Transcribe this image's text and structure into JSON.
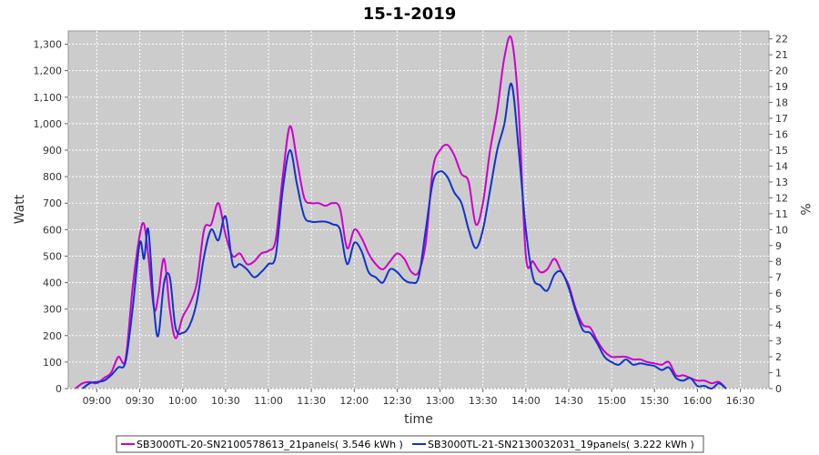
{
  "chart_data": {
    "type": "line",
    "title": "15-1-2019",
    "xlabel": "time",
    "ylabel": "Watt",
    "y2label": "%",
    "ylim": [
      0,
      1350
    ],
    "y2lim": [
      0,
      22.5
    ],
    "xlim": [
      "08:40",
      "16:50"
    ],
    "x_ticks": [
      "09:00",
      "09:30",
      "10:00",
      "10:30",
      "11:00",
      "11:30",
      "12:00",
      "12:30",
      "13:00",
      "13:30",
      "14:00",
      "14:30",
      "15:00",
      "15:30",
      "16:00",
      "16:30"
    ],
    "y_ticks": [
      "0",
      "100",
      "200",
      "300",
      "400",
      "500",
      "600",
      "700",
      "800",
      "900",
      "1,000",
      "1,100",
      "1,200",
      "1,300"
    ],
    "y2_ticks": [
      "0",
      "1",
      "2",
      "3",
      "4",
      "5",
      "6",
      "7",
      "8",
      "9",
      "10",
      "11",
      "12",
      "13",
      "14",
      "15",
      "16",
      "17",
      "18",
      "19",
      "20",
      "21",
      "22"
    ],
    "grid": true,
    "legend_position": "bottom",
    "series": [
      {
        "name": "SB3000TL-20-SN2100578613_21panels( 3.546 kWh )",
        "color": "#cc00cc",
        "points": [
          [
            "08:45",
            0
          ],
          [
            "08:50",
            20
          ],
          [
            "08:55",
            25
          ],
          [
            "09:00",
            20
          ],
          [
            "09:05",
            40
          ],
          [
            "09:10",
            60
          ],
          [
            "09:15",
            120
          ],
          [
            "09:20",
            110
          ],
          [
            "09:25",
            380
          ],
          [
            "09:30",
            580
          ],
          [
            "09:33",
            620
          ],
          [
            "09:36",
            500
          ],
          [
            "09:40",
            300
          ],
          [
            "09:43",
            350
          ],
          [
            "09:47",
            490
          ],
          [
            "09:51",
            300
          ],
          [
            "09:55",
            190
          ],
          [
            "10:00",
            270
          ],
          [
            "10:05",
            320
          ],
          [
            "10:10",
            400
          ],
          [
            "10:15",
            600
          ],
          [
            "10:20",
            620
          ],
          [
            "10:25",
            700
          ],
          [
            "10:30",
            580
          ],
          [
            "10:35",
            500
          ],
          [
            "10:40",
            510
          ],
          [
            "10:45",
            470
          ],
          [
            "10:50",
            480
          ],
          [
            "10:55",
            510
          ],
          [
            "11:00",
            520
          ],
          [
            "11:05",
            560
          ],
          [
            "11:10",
            800
          ],
          [
            "11:15",
            990
          ],
          [
            "11:20",
            860
          ],
          [
            "11:25",
            720
          ],
          [
            "11:30",
            700
          ],
          [
            "11:35",
            700
          ],
          [
            "11:40",
            690
          ],
          [
            "11:45",
            700
          ],
          [
            "11:50",
            680
          ],
          [
            "11:55",
            530
          ],
          [
            "12:00",
            600
          ],
          [
            "12:05",
            570
          ],
          [
            "12:10",
            510
          ],
          [
            "12:15",
            470
          ],
          [
            "12:20",
            450
          ],
          [
            "12:25",
            480
          ],
          [
            "12:30",
            510
          ],
          [
            "12:35",
            490
          ],
          [
            "12:40",
            440
          ],
          [
            "12:45",
            440
          ],
          [
            "12:50",
            550
          ],
          [
            "12:55",
            830
          ],
          [
            "13:00",
            900
          ],
          [
            "13:05",
            920
          ],
          [
            "13:10",
            880
          ],
          [
            "13:15",
            810
          ],
          [
            "13:20",
            780
          ],
          [
            "13:25",
            620
          ],
          [
            "13:30",
            700
          ],
          [
            "13:35",
            900
          ],
          [
            "13:40",
            1050
          ],
          [
            "13:45",
            1250
          ],
          [
            "13:50",
            1320
          ],
          [
            "13:55",
            1050
          ],
          [
            "14:00",
            500
          ],
          [
            "14:05",
            480
          ],
          [
            "14:10",
            440
          ],
          [
            "14:15",
            450
          ],
          [
            "14:20",
            490
          ],
          [
            "14:25",
            440
          ],
          [
            "14:30",
            390
          ],
          [
            "14:35",
            300
          ],
          [
            "14:40",
            240
          ],
          [
            "14:45",
            230
          ],
          [
            "14:50",
            180
          ],
          [
            "14:55",
            140
          ],
          [
            "15:00",
            120
          ],
          [
            "15:05",
            120
          ],
          [
            "15:10",
            120
          ],
          [
            "15:15",
            110
          ],
          [
            "15:20",
            110
          ],
          [
            "15:25",
            100
          ],
          [
            "15:30",
            95
          ],
          [
            "15:35",
            90
          ],
          [
            "15:40",
            100
          ],
          [
            "15:45",
            50
          ],
          [
            "15:50",
            50
          ],
          [
            "15:55",
            40
          ],
          [
            "16:00",
            30
          ],
          [
            "16:05",
            30
          ],
          [
            "16:10",
            20
          ],
          [
            "16:15",
            25
          ],
          [
            "16:20",
            0
          ]
        ]
      },
      {
        "name": "SB3000TL-21-SN2130032031_19panels( 3.222 kWh )",
        "color": "#1133cc",
        "points": [
          [
            "08:50",
            0
          ],
          [
            "08:55",
            20
          ],
          [
            "09:00",
            25
          ],
          [
            "09:05",
            30
          ],
          [
            "09:10",
            50
          ],
          [
            "09:15",
            80
          ],
          [
            "09:20",
            100
          ],
          [
            "09:25",
            300
          ],
          [
            "09:30",
            550
          ],
          [
            "09:33",
            490
          ],
          [
            "09:36",
            600
          ],
          [
            "09:40",
            300
          ],
          [
            "09:43",
            200
          ],
          [
            "09:47",
            400
          ],
          [
            "09:51",
            420
          ],
          [
            "09:55",
            230
          ],
          [
            "10:00",
            210
          ],
          [
            "10:05",
            240
          ],
          [
            "10:10",
            330
          ],
          [
            "10:15",
            500
          ],
          [
            "10:20",
            600
          ],
          [
            "10:25",
            560
          ],
          [
            "10:30",
            650
          ],
          [
            "10:35",
            470
          ],
          [
            "10:40",
            470
          ],
          [
            "10:45",
            450
          ],
          [
            "10:50",
            420
          ],
          [
            "10:55",
            440
          ],
          [
            "11:00",
            470
          ],
          [
            "11:05",
            500
          ],
          [
            "11:10",
            750
          ],
          [
            "11:15",
            900
          ],
          [
            "11:20",
            770
          ],
          [
            "11:25",
            650
          ],
          [
            "11:30",
            630
          ],
          [
            "11:35",
            630
          ],
          [
            "11:40",
            630
          ],
          [
            "11:45",
            620
          ],
          [
            "11:50",
            600
          ],
          [
            "11:55",
            470
          ],
          [
            "12:00",
            550
          ],
          [
            "12:05",
            520
          ],
          [
            "12:10",
            440
          ],
          [
            "12:15",
            420
          ],
          [
            "12:20",
            400
          ],
          [
            "12:25",
            450
          ],
          [
            "12:30",
            440
          ],
          [
            "12:35",
            410
          ],
          [
            "12:40",
            400
          ],
          [
            "12:45",
            420
          ],
          [
            "12:50",
            600
          ],
          [
            "12:55",
            780
          ],
          [
            "13:00",
            820
          ],
          [
            "13:05",
            800
          ],
          [
            "13:10",
            740
          ],
          [
            "13:15",
            700
          ],
          [
            "13:20",
            600
          ],
          [
            "13:25",
            530
          ],
          [
            "13:30",
            600
          ],
          [
            "13:35",
            750
          ],
          [
            "13:40",
            900
          ],
          [
            "13:45",
            1000
          ],
          [
            "13:50",
            1150
          ],
          [
            "13:55",
            900
          ],
          [
            "14:00",
            600
          ],
          [
            "14:05",
            420
          ],
          [
            "14:10",
            390
          ],
          [
            "14:15",
            370
          ],
          [
            "14:20",
            430
          ],
          [
            "14:25",
            440
          ],
          [
            "14:30",
            380
          ],
          [
            "14:35",
            290
          ],
          [
            "14:40",
            220
          ],
          [
            "14:45",
            210
          ],
          [
            "14:50",
            170
          ],
          [
            "14:55",
            120
          ],
          [
            "15:00",
            100
          ],
          [
            "15:05",
            90
          ],
          [
            "15:10",
            110
          ],
          [
            "15:15",
            90
          ],
          [
            "15:20",
            95
          ],
          [
            "15:25",
            90
          ],
          [
            "15:30",
            85
          ],
          [
            "15:35",
            70
          ],
          [
            "15:40",
            80
          ],
          [
            "15:45",
            40
          ],
          [
            "15:50",
            30
          ],
          [
            "15:55",
            40
          ],
          [
            "16:00",
            10
          ],
          [
            "16:05",
            10
          ],
          [
            "16:10",
            0
          ],
          [
            "16:15",
            20
          ],
          [
            "16:20",
            0
          ]
        ]
      }
    ]
  }
}
